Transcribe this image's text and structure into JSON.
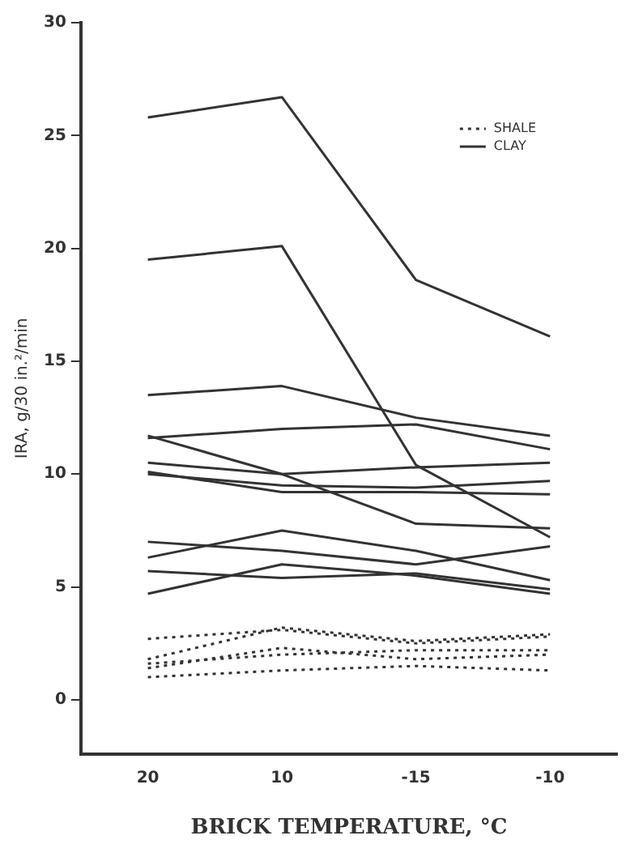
{
  "chart_data": {
    "type": "line",
    "xlabel": "BRICK TEMPERATURE, °C",
    "ylabel": "IRA, g/30 in.²/min",
    "categories": [
      "20",
      "10",
      "-15",
      "-10"
    ],
    "ylim": [
      -2.4,
      30
    ],
    "yticks": [
      0,
      5,
      10,
      15,
      20,
      25,
      30
    ],
    "grid": false,
    "legend": "top right",
    "marker": "none",
    "series": [
      {
        "name": "SHALE",
        "color": "#333333",
        "line_style": "dotted",
        "values": [
          2.7,
          3.1,
          2.5,
          2.8
        ]
      },
      {
        "color": "#333333",
        "line_style": "dotted",
        "values": [
          1.8,
          3.2,
          2.6,
          2.9
        ]
      },
      {
        "color": "#333333",
        "line_style": "dotted",
        "values": [
          1.6,
          2.0,
          2.2,
          2.2
        ]
      },
      {
        "color": "#333333",
        "line_style": "dotted",
        "values": [
          1.4,
          2.3,
          1.8,
          2.0
        ]
      },
      {
        "color": "#333333",
        "line_style": "dotted",
        "values": [
          1.0,
          1.3,
          1.5,
          1.3
        ]
      },
      {
        "name": "CLAY",
        "color": "#333333",
        "line_style": "solid",
        "values": [
          25.8,
          26.7,
          18.6,
          16.1
        ]
      },
      {
        "color": "#333333",
        "line_style": "solid",
        "values": [
          19.5,
          20.1,
          10.4,
          7.2
        ]
      },
      {
        "color": "#333333",
        "line_style": "solid",
        "values": [
          13.5,
          13.9,
          12.5,
          11.7
        ]
      },
      {
        "color": "#333333",
        "line_style": "solid",
        "values": [
          11.6,
          12.0,
          12.2,
          11.1
        ]
      },
      {
        "color": "#333333",
        "line_style": "solid",
        "values": [
          11.7,
          10.0,
          7.8,
          7.6
        ]
      },
      {
        "color": "#333333",
        "line_style": "solid",
        "values": [
          10.5,
          10.0,
          10.3,
          10.5
        ]
      },
      {
        "color": "#333333",
        "line_style": "solid",
        "values": [
          10.1,
          9.2,
          9.2,
          9.1
        ]
      },
      {
        "color": "#333333",
        "line_style": "solid",
        "values": [
          10.0,
          9.5,
          9.4,
          9.7
        ]
      },
      {
        "color": "#333333",
        "line_style": "solid",
        "values": [
          7.0,
          6.6,
          6.0,
          6.8
        ]
      },
      {
        "color": "#333333",
        "line_style": "solid",
        "values": [
          6.3,
          7.5,
          6.6,
          5.3
        ]
      },
      {
        "color": "#333333",
        "line_style": "solid",
        "values": [
          5.7,
          5.4,
          5.6,
          4.9
        ]
      },
      {
        "color": "#333333",
        "line_style": "solid",
        "values": [
          4.7,
          6.0,
          5.5,
          4.7
        ]
      }
    ]
  }
}
